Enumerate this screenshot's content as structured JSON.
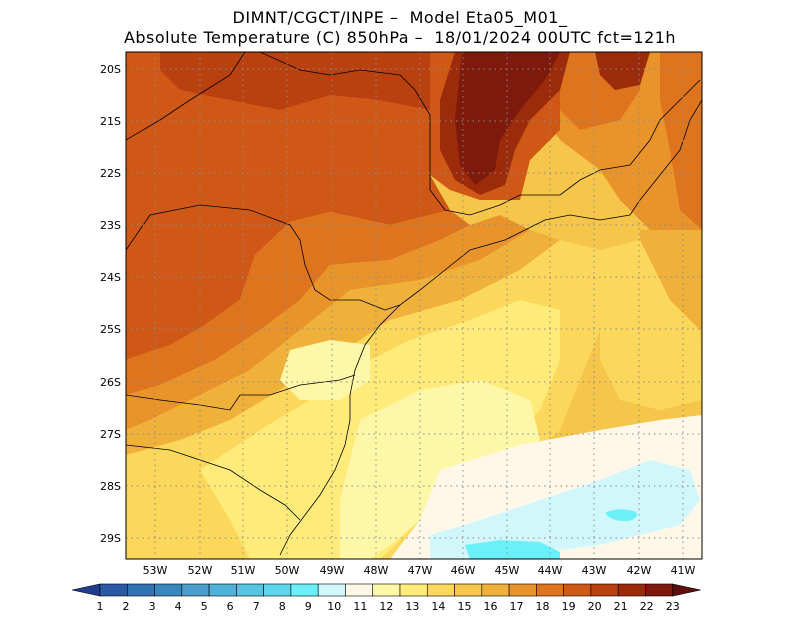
{
  "title": {
    "line1": "DIMNT/CGCT/INPE –  Model Eta05_M01_",
    "line2": "Absolute Temperature (C) 850hPa –  18/01/2024 00UTC fct=121h"
  },
  "axes": {
    "lat_labels": [
      "20S",
      "21S",
      "22S",
      "23S",
      "24S",
      "25S",
      "26S",
      "27S",
      "28S",
      "29S"
    ],
    "lon_labels": [
      "53W",
      "52W",
      "51W",
      "50W",
      "49W",
      "48W",
      "47W",
      "46W",
      "45W",
      "44W",
      "43W",
      "42W",
      "41W"
    ]
  },
  "colorbar": {
    "labels": [
      "1",
      "2",
      "3",
      "4",
      "5",
      "6",
      "7",
      "8",
      "9",
      "10",
      "11",
      "12",
      "13",
      "14",
      "15",
      "16",
      "17",
      "18",
      "19",
      "20",
      "21",
      "22",
      "23"
    ],
    "colors": [
      "#1f3d8c",
      "#2a5aa6",
      "#3173b3",
      "#3a86bf",
      "#4a9dcc",
      "#4fb2d8",
      "#57c5e2",
      "#5ed7ec",
      "#6bf0fa",
      "#d2f7fb",
      "#fff8e8",
      "#fff7a8",
      "#ffeb7a",
      "#fbd85c",
      "#f5c64a",
      "#f0b13b",
      "#e9942a",
      "#de751e",
      "#d05816",
      "#b94110",
      "#9c2b0c",
      "#7e1a0b",
      "#5e0f0c"
    ]
  },
  "map": {
    "field": "Absolute Temperature (C) 850hPa",
    "lon_range": [
      -53.8,
      -40.6
    ],
    "lat_range": [
      -29.4,
      -19.9
    ],
    "colors": {
      "t11": "#fff8e8",
      "t12": "#fff7a8",
      "t13": "#ffeb7a",
      "t14": "#fbd85c",
      "t15": "#f5c64a",
      "t16": "#f0b13b",
      "t17": "#e9942a",
      "t18": "#de751e",
      "t19": "#d05816",
      "t20": "#b94110",
      "t21": "#9c2b0c",
      "t22": "#7e1a0b",
      "cold1": "#d2f7fb",
      "cold2": "#6bf0fa"
    }
  }
}
